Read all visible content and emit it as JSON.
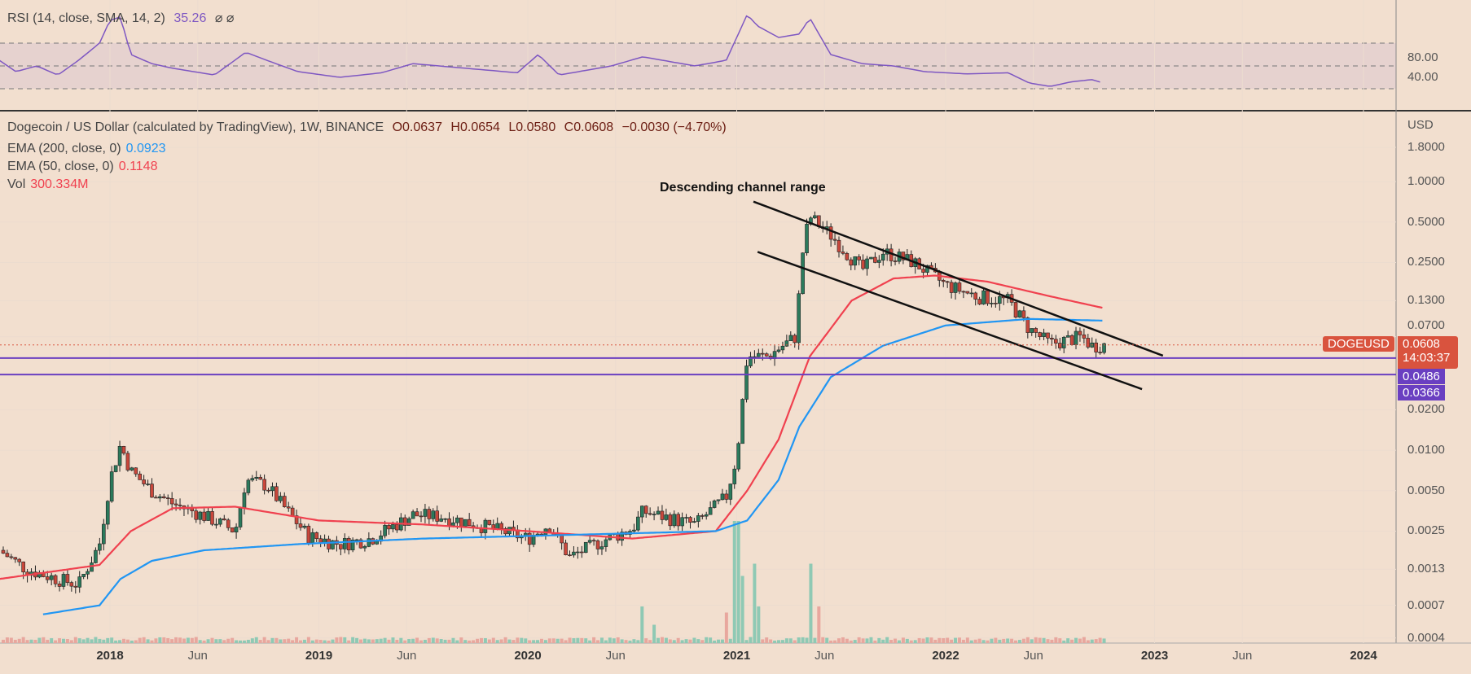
{
  "rsi_legend": {
    "label": "RSI (14, close, SMA, 14, 2)",
    "value": "35.26",
    "icons": "⌀ ⌀"
  },
  "legend": {
    "title": "Dogecoin / US Dollar (calculated by TradingView), 1W, BINANCE",
    "open": "O0.0637",
    "high": "H0.0654",
    "low": "L0.0580",
    "close": "C0.0608",
    "change": "−0.0030 (−4.70%)",
    "ema200": {
      "label": "EMA (200, close, 0)",
      "value": "0.0923"
    },
    "ema50": {
      "label": "EMA (50, close, 0)",
      "value": "0.1148"
    },
    "vol": {
      "label": "Vol",
      "value": "300.334M"
    }
  },
  "colors": {
    "background": "#f2dfcf",
    "up": "#2b7a5c",
    "down": "#c9473b",
    "ema200": "#2196f3",
    "ema50": "#f0414f",
    "rsi": "#7e57c2",
    "support": "#6a3fc1",
    "price": "#d9533e"
  },
  "chart_data": {
    "type": "candlestick",
    "scale": "log",
    "xrange": [
      2017.47,
      2023.25
    ],
    "yrange": [
      0.0004,
      1.8
    ],
    "price_path": [
      [
        2017.47,
        0.0018
      ],
      [
        2017.6,
        0.0013
      ],
      [
        2017.75,
        0.0011
      ],
      [
        2017.85,
        0.001
      ],
      [
        2017.95,
        0.002
      ],
      [
        2018.0,
        0.006
      ],
      [
        2018.05,
        0.011
      ],
      [
        2018.1,
        0.007
      ],
      [
        2018.2,
        0.005
      ],
      [
        2018.3,
        0.004
      ],
      [
        2018.4,
        0.0035
      ],
      [
        2018.5,
        0.003
      ],
      [
        2018.6,
        0.0025
      ],
      [
        2018.65,
        0.006
      ],
      [
        2018.75,
        0.0055
      ],
      [
        2018.85,
        0.0035
      ],
      [
        2018.95,
        0.0023
      ],
      [
        2019.1,
        0.002
      ],
      [
        2019.25,
        0.0022
      ],
      [
        2019.45,
        0.0033
      ],
      [
        2019.6,
        0.0032
      ],
      [
        2019.8,
        0.0027
      ],
      [
        2020.0,
        0.0022
      ],
      [
        2020.1,
        0.0028
      ],
      [
        2020.2,
        0.0016
      ],
      [
        2020.35,
        0.0021
      ],
      [
        2020.5,
        0.0026
      ],
      [
        2020.55,
        0.0035
      ],
      [
        2020.8,
        0.0028
      ],
      [
        2020.95,
        0.0045
      ],
      [
        2021.0,
        0.009
      ],
      [
        2021.05,
        0.05
      ],
      [
        2021.15,
        0.05
      ],
      [
        2021.28,
        0.07
      ],
      [
        2021.32,
        0.35
      ],
      [
        2021.35,
        0.55
      ],
      [
        2021.45,
        0.4
      ],
      [
        2021.6,
        0.22
      ],
      [
        2021.7,
        0.3
      ],
      [
        2021.85,
        0.25
      ],
      [
        2022.0,
        0.17
      ],
      [
        2022.15,
        0.14
      ],
      [
        2022.3,
        0.13
      ],
      [
        2022.4,
        0.08
      ],
      [
        2022.5,
        0.062
      ],
      [
        2022.65,
        0.07
      ],
      [
        2022.7,
        0.06
      ],
      [
        2022.75,
        0.0608
      ]
    ],
    "ema50": [
      [
        2017.47,
        0.0011
      ],
      [
        2017.95,
        0.0014
      ],
      [
        2018.1,
        0.0025
      ],
      [
        2018.3,
        0.0037
      ],
      [
        2018.6,
        0.0038
      ],
      [
        2019.0,
        0.003
      ],
      [
        2019.5,
        0.0028
      ],
      [
        2020.0,
        0.0025
      ],
      [
        2020.5,
        0.0022
      ],
      [
        2020.9,
        0.0025
      ],
      [
        2021.05,
        0.005
      ],
      [
        2021.2,
        0.012
      ],
      [
        2021.35,
        0.05
      ],
      [
        2021.55,
        0.13
      ],
      [
        2021.75,
        0.19
      ],
      [
        2021.95,
        0.2
      ],
      [
        2022.2,
        0.18
      ],
      [
        2022.5,
        0.14
      ],
      [
        2022.75,
        0.115
      ]
    ],
    "ema200": [
      [
        2017.68,
        0.0006
      ],
      [
        2017.95,
        0.0007
      ],
      [
        2018.05,
        0.0011
      ],
      [
        2018.2,
        0.0015
      ],
      [
        2018.45,
        0.0018
      ],
      [
        2018.9,
        0.002
      ],
      [
        2019.5,
        0.0022
      ],
      [
        2020.0,
        0.0023
      ],
      [
        2020.9,
        0.0025
      ],
      [
        2021.05,
        0.003
      ],
      [
        2021.2,
        0.006
      ],
      [
        2021.3,
        0.015
      ],
      [
        2021.45,
        0.035
      ],
      [
        2021.7,
        0.06
      ],
      [
        2022.0,
        0.085
      ],
      [
        2022.4,
        0.095
      ],
      [
        2022.75,
        0.0923
      ]
    ],
    "volume_spikes": [
      [
        2020.95,
        0.25
      ],
      [
        2021.0,
        1.0
      ],
      [
        2021.03,
        0.55
      ],
      [
        2021.08,
        0.65
      ],
      [
        2021.1,
        0.3
      ],
      [
        2021.35,
        0.65
      ],
      [
        2021.4,
        0.3
      ],
      [
        2020.55,
        0.3
      ],
      [
        2020.6,
        0.15
      ]
    ],
    "rsi": [
      [
        2017.47,
        55
      ],
      [
        2017.55,
        45
      ],
      [
        2017.65,
        50
      ],
      [
        2017.75,
        42
      ],
      [
        2017.85,
        55
      ],
      [
        2017.95,
        70
      ],
      [
        2018.0,
        90
      ],
      [
        2018.05,
        93
      ],
      [
        2018.1,
        60
      ],
      [
        2018.2,
        52
      ],
      [
        2018.3,
        48
      ],
      [
        2018.5,
        42
      ],
      [
        2018.65,
        62
      ],
      [
        2018.75,
        55
      ],
      [
        2018.9,
        45
      ],
      [
        2019.1,
        40
      ],
      [
        2019.3,
        44
      ],
      [
        2019.45,
        52
      ],
      [
        2019.7,
        48
      ],
      [
        2019.95,
        44
      ],
      [
        2020.05,
        60
      ],
      [
        2020.15,
        42
      ],
      [
        2020.4,
        50
      ],
      [
        2020.55,
        58
      ],
      [
        2020.8,
        50
      ],
      [
        2020.95,
        55
      ],
      [
        2021.0,
        75
      ],
      [
        2021.05,
        95
      ],
      [
        2021.1,
        85
      ],
      [
        2021.2,
        75
      ],
      [
        2021.3,
        78
      ],
      [
        2021.35,
        92
      ],
      [
        2021.45,
        60
      ],
      [
        2021.6,
        52
      ],
      [
        2021.75,
        50
      ],
      [
        2021.9,
        45
      ],
      [
        2022.1,
        43
      ],
      [
        2022.3,
        44
      ],
      [
        2022.4,
        35
      ],
      [
        2022.5,
        32
      ],
      [
        2022.6,
        36
      ],
      [
        2022.7,
        38
      ],
      [
        2022.75,
        35.26
      ]
    ],
    "rsi_levels": [
      70,
      50,
      30
    ],
    "channel_upper": [
      [
        2021.08,
        0.71
      ],
      [
        2023.04,
        0.0506
      ]
    ],
    "channel_lower": [
      [
        2021.1,
        0.3
      ],
      [
        2022.94,
        0.0285
      ]
    ],
    "support_levels": [
      0.0486,
      0.0366
    ],
    "annotation": "Descending channel range",
    "y_ticks": [
      "1.8000",
      "1.0000",
      "0.5000",
      "0.2500",
      "0.1300",
      "0.0700",
      "0.0200",
      "0.0100",
      "0.0050",
      "0.0025",
      "0.0013",
      "0.0007",
      "0.0004"
    ],
    "rsi_ticks": [
      "80.00",
      "40.00"
    ],
    "axis_unit": "USD",
    "x_ticks": [
      {
        "label": "2018",
        "t": 2018.0,
        "year": true
      },
      {
        "label": "Jun",
        "t": 2018.42
      },
      {
        "label": "2019",
        "t": 2019.0,
        "year": true
      },
      {
        "label": "Jun",
        "t": 2019.42
      },
      {
        "label": "2020",
        "t": 2020.0,
        "year": true
      },
      {
        "label": "Jun",
        "t": 2020.42
      },
      {
        "label": "2021",
        "t": 2021.0,
        "year": true
      },
      {
        "label": "Jun",
        "t": 2021.42
      },
      {
        "label": "2022",
        "t": 2022.0,
        "year": true
      },
      {
        "label": "Jun",
        "t": 2022.42
      },
      {
        "label": "2023",
        "t": 2023.0,
        "year": true
      },
      {
        "label": "Jun",
        "t": 2023.42
      },
      {
        "label": "2024",
        "t": 2024.0,
        "year": true
      }
    ],
    "last_price": {
      "symbol": "DOGEUSD",
      "value": "0.0608",
      "countdown": "14:03:37"
    }
  }
}
